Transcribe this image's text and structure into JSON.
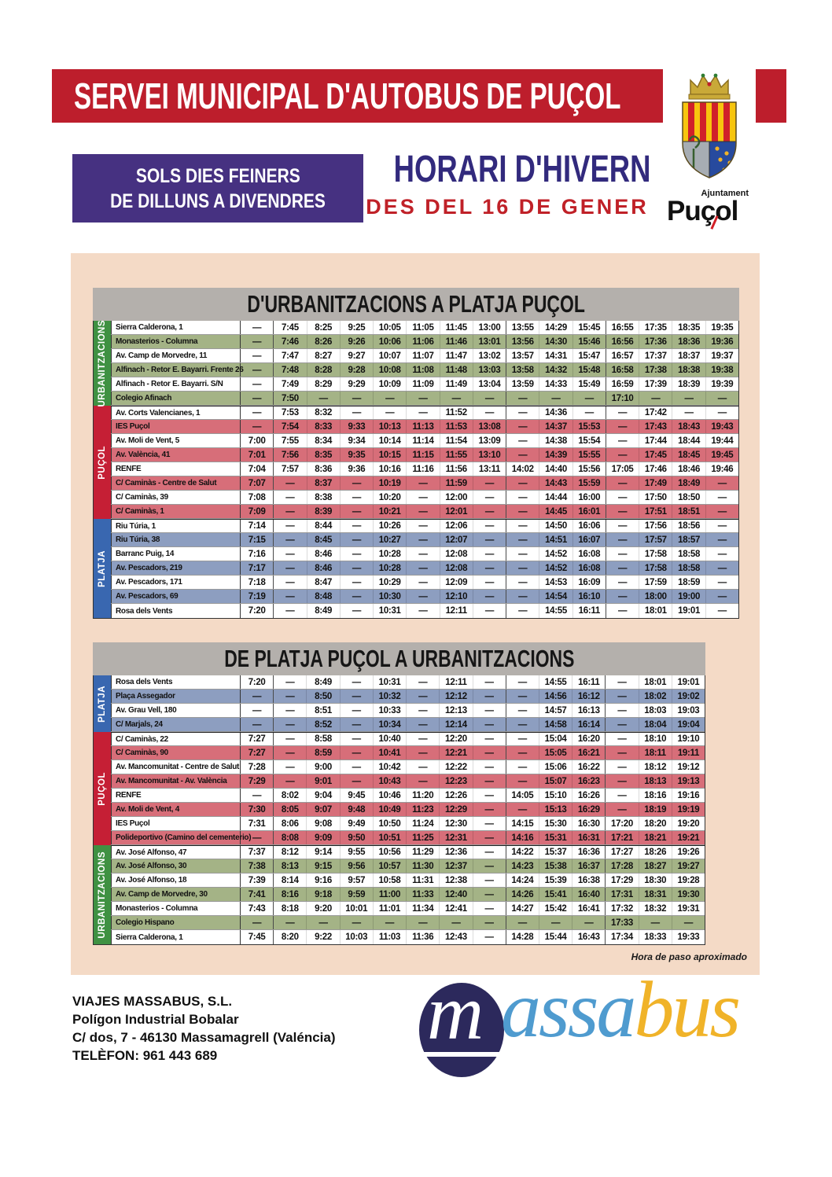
{
  "page": {
    "title_banner": "SERVEI MUNICIPAL D'AUTOBUS DE PUÇOL",
    "days_box": [
      "SOLS DIES FEINERS",
      "DE DILLUNS A DIVENDRES"
    ],
    "season_title": "HORARI D'HIVERN",
    "season_subtitle": "DES DEL 16 DE GENER",
    "municipality_logo": {
      "small": "Ajuntament",
      "big": "Puçol"
    },
    "note": "Hora de paso aproximado"
  },
  "colors": {
    "banner_red": "#bd1e2c",
    "purple_box": "#463181",
    "season_title_color": "#322a7d",
    "season_subtitle_color": "#c02128",
    "panel_pink": "#f4dac6",
    "table_title_gray": "#b4b0ac",
    "row_green": "#a4b386",
    "row_red": "#d76e79",
    "row_blue": "#8d9ec0",
    "side_green": "#3f9142",
    "side_red": "#c51f35",
    "side_blue": "#3967b0"
  },
  "tables": [
    {
      "title": "D'URBANITZACIONS A PLATJA PUÇOL",
      "columns": 15,
      "groups": [
        {
          "label": "URBANITZACIONS",
          "rows": 6,
          "color": "green"
        },
        {
          "label": "PUÇOL",
          "rows": 8,
          "color": "red"
        },
        {
          "label": "PLATJA",
          "rows": 7,
          "color": "blue"
        }
      ],
      "rows": [
        {
          "stop": "Sierra Calderona, 1",
          "bg": "white",
          "times": [
            "—",
            "7:45",
            "8:25",
            "9:25",
            "10:05",
            "11:05",
            "11:45",
            "13:00",
            "13:55",
            "14:29",
            "15:45",
            "16:55",
            "17:35",
            "18:35",
            "19:35"
          ]
        },
        {
          "stop": "Monasterios - Columna",
          "bg": "green",
          "times": [
            "—",
            "7:46",
            "8:26",
            "9:26",
            "10:06",
            "11:06",
            "11:46",
            "13:01",
            "13:56",
            "14:30",
            "15:46",
            "16:56",
            "17:36",
            "18:36",
            "19:36"
          ]
        },
        {
          "stop": "Av. Camp de Morvedre, 11",
          "bg": "white",
          "times": [
            "—",
            "7:47",
            "8:27",
            "9:27",
            "10:07",
            "11:07",
            "11:47",
            "13:02",
            "13:57",
            "14:31",
            "15:47",
            "16:57",
            "17:37",
            "18:37",
            "19:37"
          ]
        },
        {
          "stop": "Alfinach - Retor E. Bayarri. Frente 26",
          "bg": "green",
          "times": [
            "—",
            "7:48",
            "8:28",
            "9:28",
            "10:08",
            "11:08",
            "11:48",
            "13:03",
            "13:58",
            "14:32",
            "15:48",
            "16:58",
            "17:38",
            "18:38",
            "19:38"
          ]
        },
        {
          "stop": "Alfinach - Retor E. Bayarri. S/N",
          "bg": "white",
          "times": [
            "—",
            "7:49",
            "8:29",
            "9:29",
            "10:09",
            "11:09",
            "11:49",
            "13:04",
            "13:59",
            "14:33",
            "15:49",
            "16:59",
            "17:39",
            "18:39",
            "19:39"
          ]
        },
        {
          "stop": "Colegio Afinach",
          "bg": "green",
          "times": [
            "—",
            "7:50",
            "—",
            "—",
            "—",
            "—",
            "—",
            "—",
            "—",
            "—",
            "—",
            "17:10",
            "—",
            "—",
            "—"
          ]
        },
        {
          "stop": "Av. Corts Valencianes, 1",
          "bg": "white",
          "times": [
            "—",
            "7:53",
            "8:32",
            "—",
            "—",
            "—",
            "11:52",
            "—",
            "—",
            "14:36",
            "—",
            "—",
            "17:42",
            "—",
            "—"
          ]
        },
        {
          "stop": "IES Puçol",
          "bg": "red",
          "times": [
            "—",
            "7:54",
            "8:33",
            "9:33",
            "10:13",
            "11:13",
            "11:53",
            "13:08",
            "—",
            "14:37",
            "15:53",
            "—",
            "17:43",
            "18:43",
            "19:43"
          ]
        },
        {
          "stop": "Av. Moli de Vent, 5",
          "bg": "white",
          "times": [
            "7:00",
            "7:55",
            "8:34",
            "9:34",
            "10:14",
            "11:14",
            "11:54",
            "13:09",
            "—",
            "14:38",
            "15:54",
            "—",
            "17:44",
            "18:44",
            "19:44"
          ]
        },
        {
          "stop": "Av. València, 41",
          "bg": "red",
          "times": [
            "7:01",
            "7:56",
            "8:35",
            "9:35",
            "10:15",
            "11:15",
            "11:55",
            "13:10",
            "—",
            "14:39",
            "15:55",
            "—",
            "17:45",
            "18:45",
            "19:45"
          ]
        },
        {
          "stop": "RENFE",
          "bg": "white",
          "times": [
            "7:04",
            "7:57",
            "8:36",
            "9:36",
            "10:16",
            "11:16",
            "11:56",
            "13:11",
            "14:02",
            "14:40",
            "15:56",
            "17:05",
            "17:46",
            "18:46",
            "19:46"
          ]
        },
        {
          "stop": "C/ Caminàs - Centre de Salut",
          "bg": "red",
          "times": [
            "7:07",
            "—",
            "8:37",
            "—",
            "10:19",
            "—",
            "11:59",
            "—",
            "—",
            "14:43",
            "15:59",
            "—",
            "17:49",
            "18:49",
            "—"
          ]
        },
        {
          "stop": "C/ Caminàs, 39",
          "bg": "white",
          "times": [
            "7:08",
            "—",
            "8:38",
            "—",
            "10:20",
            "—",
            "12:00",
            "—",
            "—",
            "14:44",
            "16:00",
            "—",
            "17:50",
            "18:50",
            "—"
          ]
        },
        {
          "stop": "C/ Caminàs, 1",
          "bg": "red",
          "times": [
            "7:09",
            "—",
            "8:39",
            "—",
            "10:21",
            "—",
            "12:01",
            "—",
            "—",
            "14:45",
            "16:01",
            "—",
            "17:51",
            "18:51",
            "—"
          ]
        },
        {
          "stop": "Riu Túria, 1",
          "bg": "white",
          "times": [
            "7:14",
            "—",
            "8:44",
            "—",
            "10:26",
            "—",
            "12:06",
            "—",
            "—",
            "14:50",
            "16:06",
            "—",
            "17:56",
            "18:56",
            "—"
          ]
        },
        {
          "stop": "Riu Túria, 38",
          "bg": "blue",
          "times": [
            "7:15",
            "—",
            "8:45",
            "—",
            "10:27",
            "—",
            "12:07",
            "—",
            "—",
            "14:51",
            "16:07",
            "—",
            "17:57",
            "18:57",
            "—"
          ]
        },
        {
          "stop": "Barranc Puig, 14",
          "bg": "white",
          "times": [
            "7:16",
            "—",
            "8:46",
            "—",
            "10:28",
            "—",
            "12:08",
            "—",
            "—",
            "14:52",
            "16:08",
            "—",
            "17:58",
            "18:58",
            "—"
          ]
        },
        {
          "stop": "Av. Pescadors, 219",
          "bg": "blue",
          "times": [
            "7:17",
            "—",
            "8:46",
            "—",
            "10:28",
            "—",
            "12:08",
            "—",
            "—",
            "14:52",
            "16:08",
            "—",
            "17:58",
            "18:58",
            "—"
          ]
        },
        {
          "stop": "Av. Pescadors, 171",
          "bg": "white",
          "times": [
            "7:18",
            "—",
            "8:47",
            "—",
            "10:29",
            "—",
            "12:09",
            "—",
            "—",
            "14:53",
            "16:09",
            "—",
            "17:59",
            "18:59",
            "—"
          ]
        },
        {
          "stop": "Av. Pescadors, 69",
          "bg": "blue",
          "times": [
            "7:19",
            "—",
            "8:48",
            "—",
            "10:30",
            "—",
            "12:10",
            "—",
            "—",
            "14:54",
            "16:10",
            "—",
            "18:00",
            "19:00",
            "—"
          ]
        },
        {
          "stop": "Rosa dels Vents",
          "bg": "white",
          "times": [
            "7:20",
            "—",
            "8:49",
            "—",
            "10:31",
            "—",
            "12:11",
            "—",
            "—",
            "14:55",
            "16:11",
            "—",
            "18:01",
            "19:01",
            "—"
          ]
        }
      ]
    },
    {
      "title": "DE PLATJA PUÇOL A URBANITZACIONS",
      "columns": 14,
      "groups": [
        {
          "label": "PLATJA",
          "rows": 4,
          "color": "blue"
        },
        {
          "label": "PUÇOL",
          "rows": 8,
          "color": "red"
        },
        {
          "label": "URBANITZACIONS",
          "rows": 7,
          "color": "green"
        }
      ],
      "rows": [
        {
          "stop": "Rosa dels Vents",
          "bg": "white",
          "times": [
            "7:20",
            "—",
            "8:49",
            "—",
            "10:31",
            "—",
            "12:11",
            "—",
            "—",
            "14:55",
            "16:11",
            "—",
            "18:01",
            "19:01"
          ]
        },
        {
          "stop": "Plaça Assegador",
          "bg": "blue",
          "times": [
            "—",
            "—",
            "8:50",
            "—",
            "10:32",
            "—",
            "12:12",
            "—",
            "—",
            "14:56",
            "16:12",
            "—",
            "18:02",
            "19:02"
          ]
        },
        {
          "stop": "Av. Grau Vell, 180",
          "bg": "white",
          "times": [
            "—",
            "—",
            "8:51",
            "—",
            "10:33",
            "—",
            "12:13",
            "—",
            "—",
            "14:57",
            "16:13",
            "—",
            "18:03",
            "19:03"
          ]
        },
        {
          "stop": "C/ Marjals, 24",
          "bg": "blue",
          "times": [
            "—",
            "—",
            "8:52",
            "—",
            "10:34",
            "—",
            "12:14",
            "—",
            "—",
            "14:58",
            "16:14",
            "—",
            "18:04",
            "19:04"
          ]
        },
        {
          "stop": "C/ Caminàs, 22",
          "bg": "white",
          "times": [
            "7:27",
            "—",
            "8:58",
            "—",
            "10:40",
            "—",
            "12:20",
            "—",
            "—",
            "15:04",
            "16:20",
            "—",
            "18:10",
            "19:10"
          ]
        },
        {
          "stop": "C/ Caminàs, 90",
          "bg": "red",
          "times": [
            "7:27",
            "—",
            "8:59",
            "—",
            "10:41",
            "—",
            "12:21",
            "—",
            "—",
            "15:05",
            "16:21",
            "—",
            "18:11",
            "19:11"
          ]
        },
        {
          "stop": "Av. Mancomunitat - Centre de Salut",
          "bg": "white",
          "times": [
            "7:28",
            "—",
            "9:00",
            "—",
            "10:42",
            "—",
            "12:22",
            "—",
            "—",
            "15:06",
            "16:22",
            "—",
            "18:12",
            "19:12"
          ]
        },
        {
          "stop": "Av. Mancomunitat - Av. València",
          "bg": "red",
          "times": [
            "7:29",
            "—",
            "9:01",
            "—",
            "10:43",
            "—",
            "12:23",
            "—",
            "—",
            "15:07",
            "16:23",
            "—",
            "18:13",
            "19:13"
          ]
        },
        {
          "stop": "RENFE",
          "bg": "white",
          "times": [
            "—",
            "8:02",
            "9:04",
            "9:45",
            "10:46",
            "11:20",
            "12:26",
            "—",
            "14:05",
            "15:10",
            "16:26",
            "—",
            "18:16",
            "19:16"
          ]
        },
        {
          "stop": "Av. Moli de Vent, 4",
          "bg": "red",
          "times": [
            "7:30",
            "8:05",
            "9:07",
            "9:48",
            "10:49",
            "11:23",
            "12:29",
            "—",
            "—",
            "15:13",
            "16:29",
            "—",
            "18:19",
            "19:19"
          ]
        },
        {
          "stop": "IES Puçol",
          "bg": "white",
          "times": [
            "7:31",
            "8:06",
            "9:08",
            "9:49",
            "10:50",
            "11:24",
            "12:30",
            "—",
            "14:15",
            "15:30",
            "16:30",
            "17:20",
            "18:20",
            "19:20"
          ]
        },
        {
          "stop": "Polideportivo (Camino del cementerio)",
          "bg": "red",
          "times": [
            "—",
            "8:08",
            "9:09",
            "9:50",
            "10:51",
            "11:25",
            "12:31",
            "—",
            "14:16",
            "15:31",
            "16:31",
            "17:21",
            "18:21",
            "19:21"
          ]
        },
        {
          "stop": "Av. José Alfonso, 47",
          "bg": "white",
          "times": [
            "7:37",
            "8:12",
            "9:14",
            "9:55",
            "10:56",
            "11:29",
            "12:36",
            "—",
            "14:22",
            "15:37",
            "16:36",
            "17:27",
            "18:26",
            "19:26"
          ]
        },
        {
          "stop": "Av. José Alfonso, 30",
          "bg": "green",
          "times": [
            "7:38",
            "8:13",
            "9:15",
            "9:56",
            "10:57",
            "11:30",
            "12:37",
            "—",
            "14:23",
            "15:38",
            "16:37",
            "17:28",
            "18:27",
            "19:27"
          ]
        },
        {
          "stop": "Av. José Alfonso, 18",
          "bg": "white",
          "times": [
            "7:39",
            "8:14",
            "9:16",
            "9:57",
            "10:58",
            "11:31",
            "12:38",
            "—",
            "14:24",
            "15:39",
            "16:38",
            "17:29",
            "18:30",
            "19:28"
          ]
        },
        {
          "stop": "Av. Camp de Morvedre, 30",
          "bg": "green",
          "times": [
            "7:41",
            "8:16",
            "9:18",
            "9:59",
            "11:00",
            "11:33",
            "12:40",
            "—",
            "14:26",
            "15:41",
            "16:40",
            "17:31",
            "18:31",
            "19:30"
          ]
        },
        {
          "stop": "Monasterios - Columna",
          "bg": "white",
          "times": [
            "7:43",
            "8:18",
            "9:20",
            "10:01",
            "11:01",
            "11:34",
            "12:41",
            "—",
            "14:27",
            "15:42",
            "16:41",
            "17:32",
            "18:32",
            "19:31"
          ]
        },
        {
          "stop": "Colegio Hispano",
          "bg": "green",
          "times": [
            "—",
            "—",
            "—",
            "—",
            "—",
            "—",
            "—",
            "—",
            "—",
            "—",
            "—",
            "17:33",
            "—",
            "—"
          ]
        },
        {
          "stop": "Sierra Calderona, 1",
          "bg": "white",
          "times": [
            "7:45",
            "8:20",
            "9:22",
            "10:03",
            "11:03",
            "11:36",
            "12:43",
            "—",
            "14:28",
            "15:44",
            "16:43",
            "17:34",
            "18:33",
            "19:33"
          ]
        }
      ]
    }
  ],
  "footer": {
    "company": "VIAJES MASSABUS, S.L.",
    "address_line1": "Polígon Industrial Bobalar",
    "address_line2": "C/ dos, 7 - 46130 Massamagrell (Valéncia)",
    "phone": "TELÈFON: 961 443 689",
    "brand": {
      "m": "m",
      "assa": "assa",
      "bus": "bus"
    }
  }
}
